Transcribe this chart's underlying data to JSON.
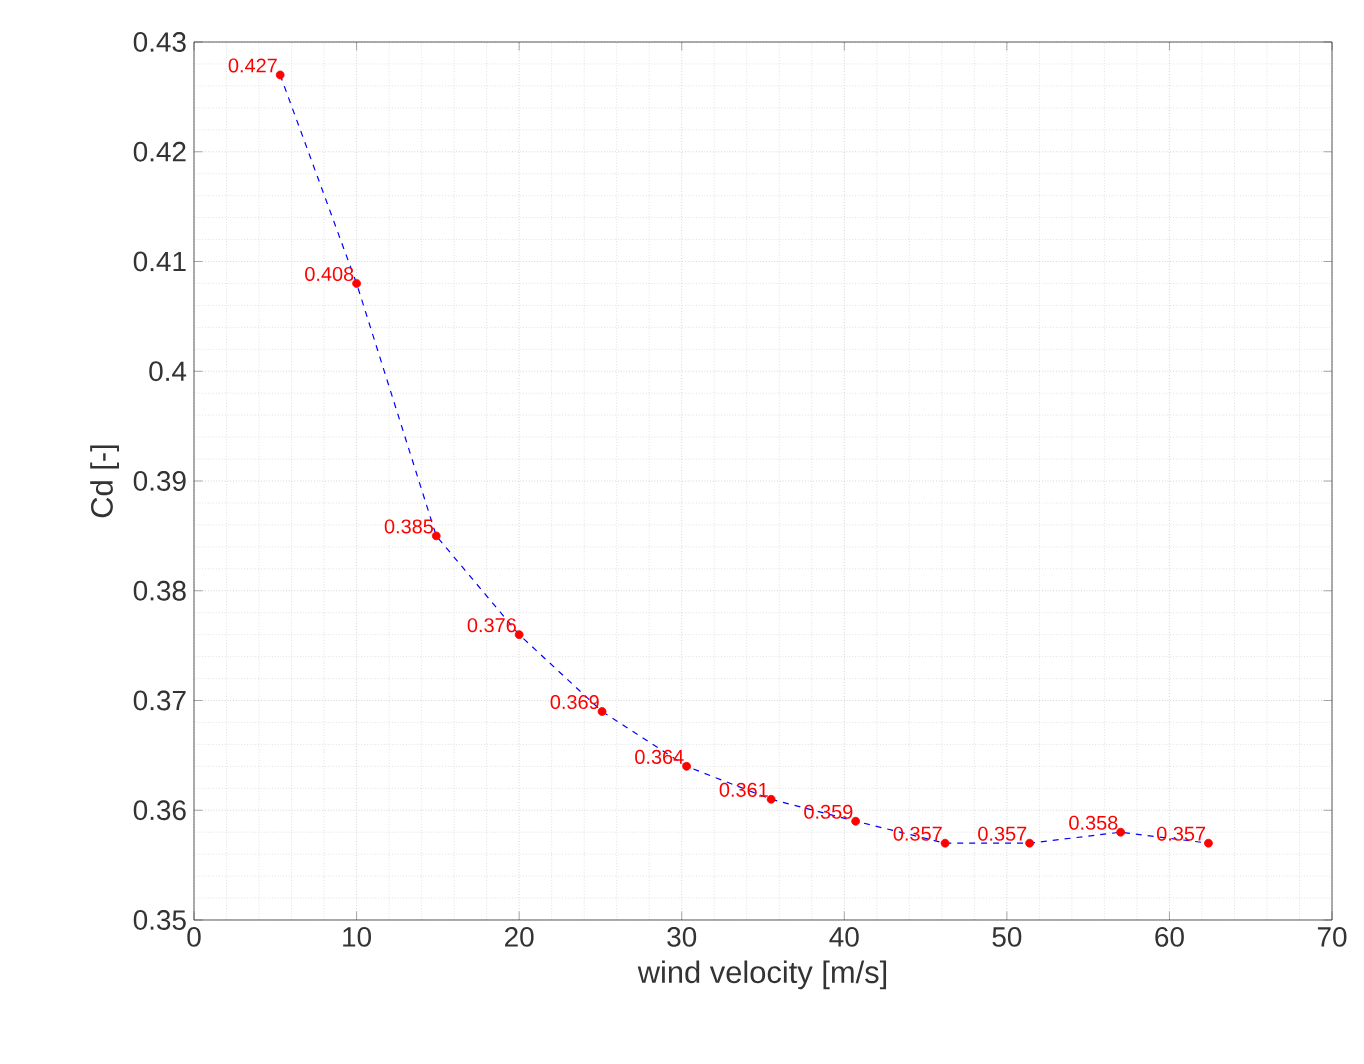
{
  "chart_data": {
    "type": "line",
    "xlabel": "wind velocity [m/s]",
    "ylabel": "Cd [-]",
    "x": [
      5.3,
      10.0,
      14.9,
      20.0,
      25.1,
      30.3,
      35.5,
      40.7,
      46.2,
      51.4,
      57.0,
      62.4
    ],
    "series": [
      {
        "color": "#0000ff",
        "colors": [
          "#ff0000",
          "#ff0000",
          "#ff0000",
          "#ff0000",
          "#ff0000",
          "#ff0000",
          "#ff0000",
          "#ff0000",
          "#ff0000",
          "#ff0000",
          "#ff0000",
          "#ff0000"
        ],
        "values": [
          0.427,
          0.408,
          0.385,
          0.376,
          0.369,
          0.364,
          0.361,
          0.359,
          0.357,
          0.357,
          0.358,
          0.357
        ]
      }
    ],
    "xlim": [
      0,
      70
    ],
    "xticks": [
      0,
      10,
      20,
      30,
      40,
      50,
      60,
      70
    ],
    "ylim": [
      0.35,
      0.43
    ],
    "yticks": [
      0.35,
      0.36,
      0.37,
      0.38,
      0.39,
      0.4,
      0.41,
      0.42,
      0.43
    ],
    "grid": true,
    "marker": "circle",
    "line_style": "dashed",
    "data_labels": true
  }
}
